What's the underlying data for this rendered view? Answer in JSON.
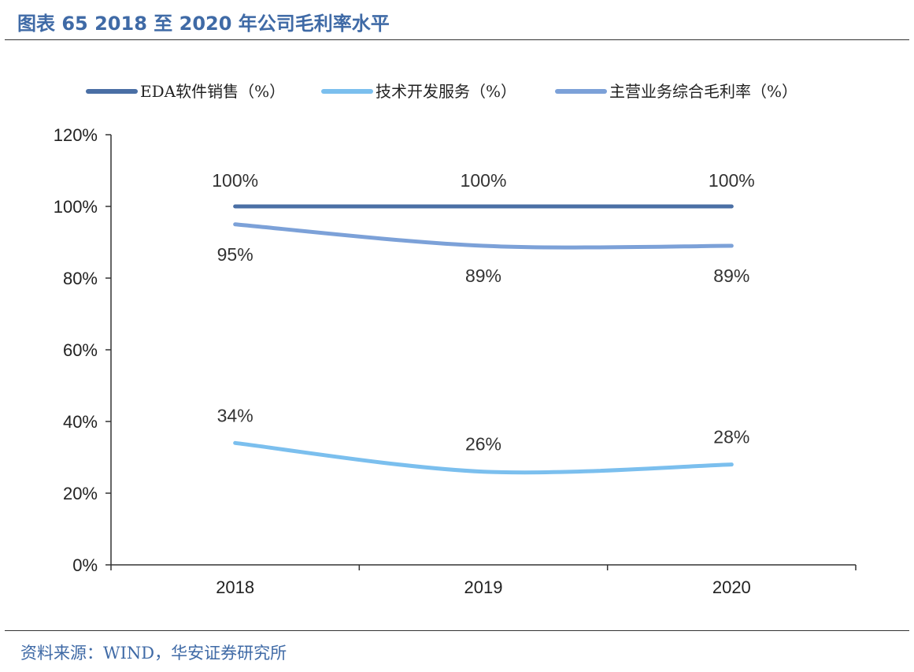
{
  "figure": {
    "title": "图表 65 2018 至 2020 年公司毛利率水平",
    "source": "资料来源：WIND，华安证券研究所"
  },
  "chart_data": {
    "type": "line",
    "categories": [
      "2018",
      "2019",
      "2020"
    ],
    "series": [
      {
        "name": "EDA软件销售（%）",
        "values": [
          100,
          100,
          100
        ],
        "labels": [
          "100%",
          "100%",
          "100%"
        ],
        "color": "#4a6fa5"
      },
      {
        "name": "技术开发服务（%）",
        "values": [
          34,
          26,
          28
        ],
        "labels": [
          "34%",
          "26%",
          "28%"
        ],
        "color": "#7bbfee"
      },
      {
        "name": "主营业务综合毛利率（%）",
        "values": [
          95,
          89,
          89
        ],
        "labels": [
          "95%",
          "89%",
          "89%"
        ],
        "color": "#7ca1d8"
      }
    ],
    "ylim": [
      0,
      120
    ],
    "yticks": [
      "0%",
      "20%",
      "40%",
      "60%",
      "80%",
      "100%",
      "120%"
    ],
    "legend_position": "top",
    "grid": false,
    "xlabel": "",
    "ylabel": ""
  }
}
